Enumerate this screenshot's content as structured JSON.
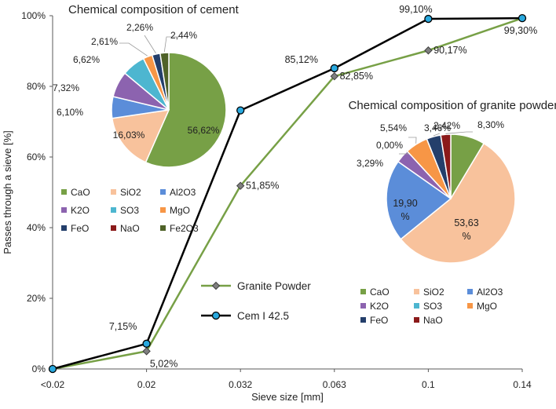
{
  "chart_data": [
    {
      "type": "line",
      "xlabel": "Sieve size [mm]",
      "ylabel": "Passes through a sieve [%]",
      "ylim": [
        0,
        100
      ],
      "categories": [
        "<0.02",
        "0.02",
        "0.032",
        "0.063",
        "0.1",
        "0.14"
      ],
      "y_ticks": [
        "0%",
        "20%",
        "40%",
        "60%",
        "80%",
        "100%"
      ],
      "y_tick_values": [
        0,
        20,
        40,
        60,
        80,
        100
      ],
      "grid": false,
      "legend_position": "bottom-center",
      "series": [
        {
          "name": "Granite Powder",
          "color": "#77A046",
          "marker_fill": "#7F7F7F",
          "marker": "diamond",
          "values": [
            0,
            5.02,
            51.85,
            82.85,
            90.17,
            99.3
          ],
          "labels": [
            "",
            "5,02%",
            "51,85%",
            "82,85%",
            "90,17%",
            ""
          ]
        },
        {
          "name": "Cem I 42.5",
          "color": "#000000",
          "marker_fill": "#29A9DF",
          "marker": "circle",
          "values": [
            0,
            7.15,
            73.2,
            85.12,
            99.1,
            99.3
          ],
          "labels": [
            "",
            "7,15%",
            "",
            "85,12%",
            "99,10%",
            "99,30%"
          ]
        }
      ]
    },
    {
      "type": "pie",
      "title": "Chemical composition of cement",
      "legend_position": "bottom",
      "slices": [
        {
          "name": "CaO",
          "value": 56.62,
          "label": "56,62%",
          "color": "#77A046"
        },
        {
          "name": "SiO2",
          "value": 16.03,
          "label": "16,03%",
          "color": "#F8C29C"
        },
        {
          "name": "Al2O3",
          "value": 6.1,
          "label": "6,10%",
          "color": "#5B8DD9"
        },
        {
          "name": "K2O",
          "value": 7.32,
          "label": "7,32%",
          "color": "#8C63AF"
        },
        {
          "name": "SO3",
          "value": 6.62,
          "label": "6,62%",
          "color": "#4DB6D0"
        },
        {
          "name": "MgO",
          "value": 2.61,
          "label": "2,61%",
          "color": "#F79646"
        },
        {
          "name": "FeO",
          "value": 2.26,
          "label": "2,26%",
          "color": "#243F6B"
        },
        {
          "name": "NaO",
          "value": 0,
          "label": "",
          "color": "#8B1A1A"
        },
        {
          "name": "Fe2O3",
          "value": 2.44,
          "label": "2,44%",
          "color": "#4F6228"
        }
      ]
    },
    {
      "type": "pie",
      "title": "Chemical composition of granite powder",
      "legend_position": "bottom",
      "slices": [
        {
          "name": "CaO",
          "value": 8.3,
          "label": "8,30%",
          "color": "#77A046"
        },
        {
          "name": "SiO2",
          "value": 53.63,
          "label": "53,63 %",
          "color": "#F8C29C"
        },
        {
          "name": "Al2O3",
          "value": 19.9,
          "label": "19,90 %",
          "color": "#5B8DD9"
        },
        {
          "name": "K2O",
          "value": 3.29,
          "label": "3,29%",
          "color": "#8C63AF"
        },
        {
          "name": "SO3",
          "value": 0.0,
          "label": "0,00%",
          "color": "#4DB6D0"
        },
        {
          "name": "MgO",
          "value": 5.54,
          "label": "5,54%",
          "color": "#F79646"
        },
        {
          "name": "FeO",
          "value": 3.46,
          "label": "3,46%",
          "color": "#243F6B"
        },
        {
          "name": "NaO",
          "value": 2.42,
          "label": "2,42%",
          "color": "#8B1A1A"
        }
      ]
    }
  ]
}
